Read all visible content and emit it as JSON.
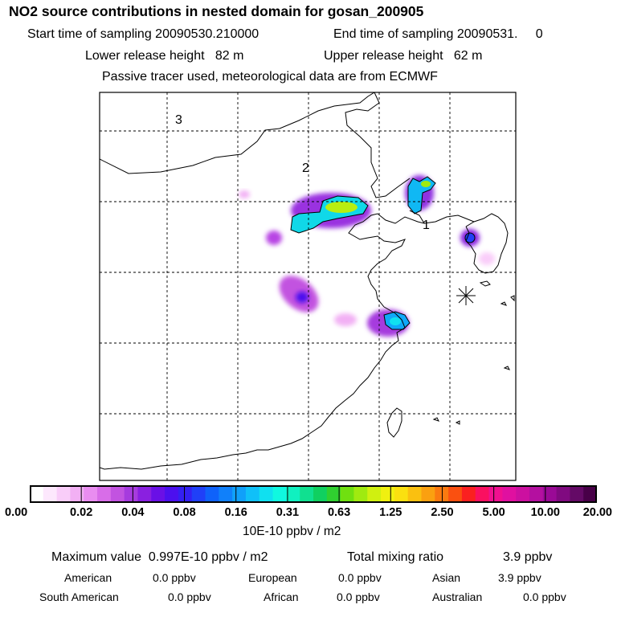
{
  "header": {
    "title": "NO2 source contributions in nested domain for gosan_200905",
    "start_sampling": "Start time of sampling 20090530.210000",
    "end_sampling": "End time of sampling 20090531.     0",
    "lower_release": "Lower release height   82 m",
    "upper_release": "Upper release height   62 m",
    "tracer_note": "Passive tracer used, meteorological data are from ECMWF"
  },
  "map": {
    "region_labels": [
      "1",
      "2",
      "3"
    ]
  },
  "colorbar": {
    "tick_labels": [
      "0.00",
      "0.02",
      "0.04",
      "0.08",
      "0.16",
      "0.31",
      "0.63",
      "1.25",
      "2.50",
      "5.00",
      "10.00",
      "20.00"
    ],
    "colors": [
      "#ffffff",
      "#fde8fd",
      "#f9cdf9",
      "#f2b0f4",
      "#e98df0",
      "#d86de8",
      "#c253e0",
      "#a63bde",
      "#8a20e0",
      "#6a10e6",
      "#4c10ee",
      "#3420f2",
      "#2040f8",
      "#0f62fa",
      "#1080fa",
      "#10a0fa",
      "#10c0f8",
      "#10e0f0",
      "#10f8e0",
      "#10f0c0",
      "#10e090",
      "#10d060",
      "#30d030",
      "#70e010",
      "#a0ea10",
      "#d0f010",
      "#f0f010",
      "#fae010",
      "#fac010",
      "#faa010",
      "#fa7a10",
      "#fa5010",
      "#fa2020",
      "#fa1060",
      "#f01090",
      "#e010a0",
      "#cc10a0",
      "#b410a0",
      "#9a0a96",
      "#800a80",
      "#640a66",
      "#480048"
    ],
    "unit": "10E-10 ppbv / m2"
  },
  "summary": {
    "max_value": "Maximum value  0.997E-10 ppbv / m2",
    "total_label": "Total mixing ratio",
    "total_value": "3.9 ppbv",
    "regions": [
      {
        "name": "American",
        "value": "0.0 ppbv"
      },
      {
        "name": "European",
        "value": "0.0 ppbv"
      },
      {
        "name": "Asian",
        "value": "3.9 ppbv"
      },
      {
        "name": "South American",
        "value": "0.0 ppbv"
      },
      {
        "name": "African",
        "value": "0.0 ppbv"
      },
      {
        "name": "Australian",
        "value": "0.0 ppbv"
      }
    ]
  }
}
